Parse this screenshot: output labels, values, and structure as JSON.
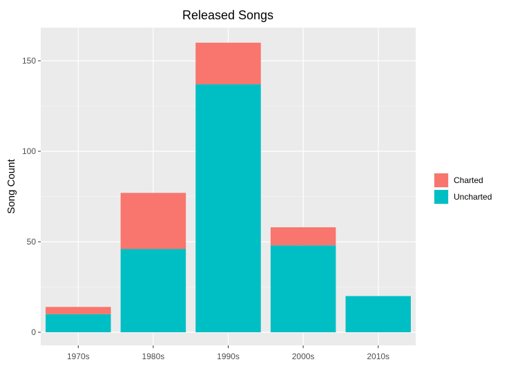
{
  "chart_data": {
    "type": "bar",
    "stacked": true,
    "title": "Released Songs",
    "xlabel": "",
    "ylabel": "Song Count",
    "categories": [
      "1970s",
      "1980s",
      "1990s",
      "2000s",
      "2010s"
    ],
    "series": [
      {
        "name": "Uncharted",
        "values": [
          10,
          46,
          137,
          48,
          20
        ],
        "color": "#00bfc4"
      },
      {
        "name": "Charted",
        "values": [
          4,
          31,
          23,
          10,
          0
        ],
        "color": "#f8766d"
      }
    ],
    "ylim": [
      0,
      167
    ],
    "yticks": [
      0,
      50,
      100,
      150
    ],
    "ytick_labels": [
      "0",
      "50",
      "100",
      "150"
    ],
    "grid": true,
    "panel_background": "#ebebeb",
    "grid_color": "#ffffff",
    "legend": {
      "placement": "right",
      "entries": [
        "Charted",
        "Uncharted"
      ],
      "colors": [
        "#f8766d",
        "#00bfc4"
      ]
    }
  }
}
